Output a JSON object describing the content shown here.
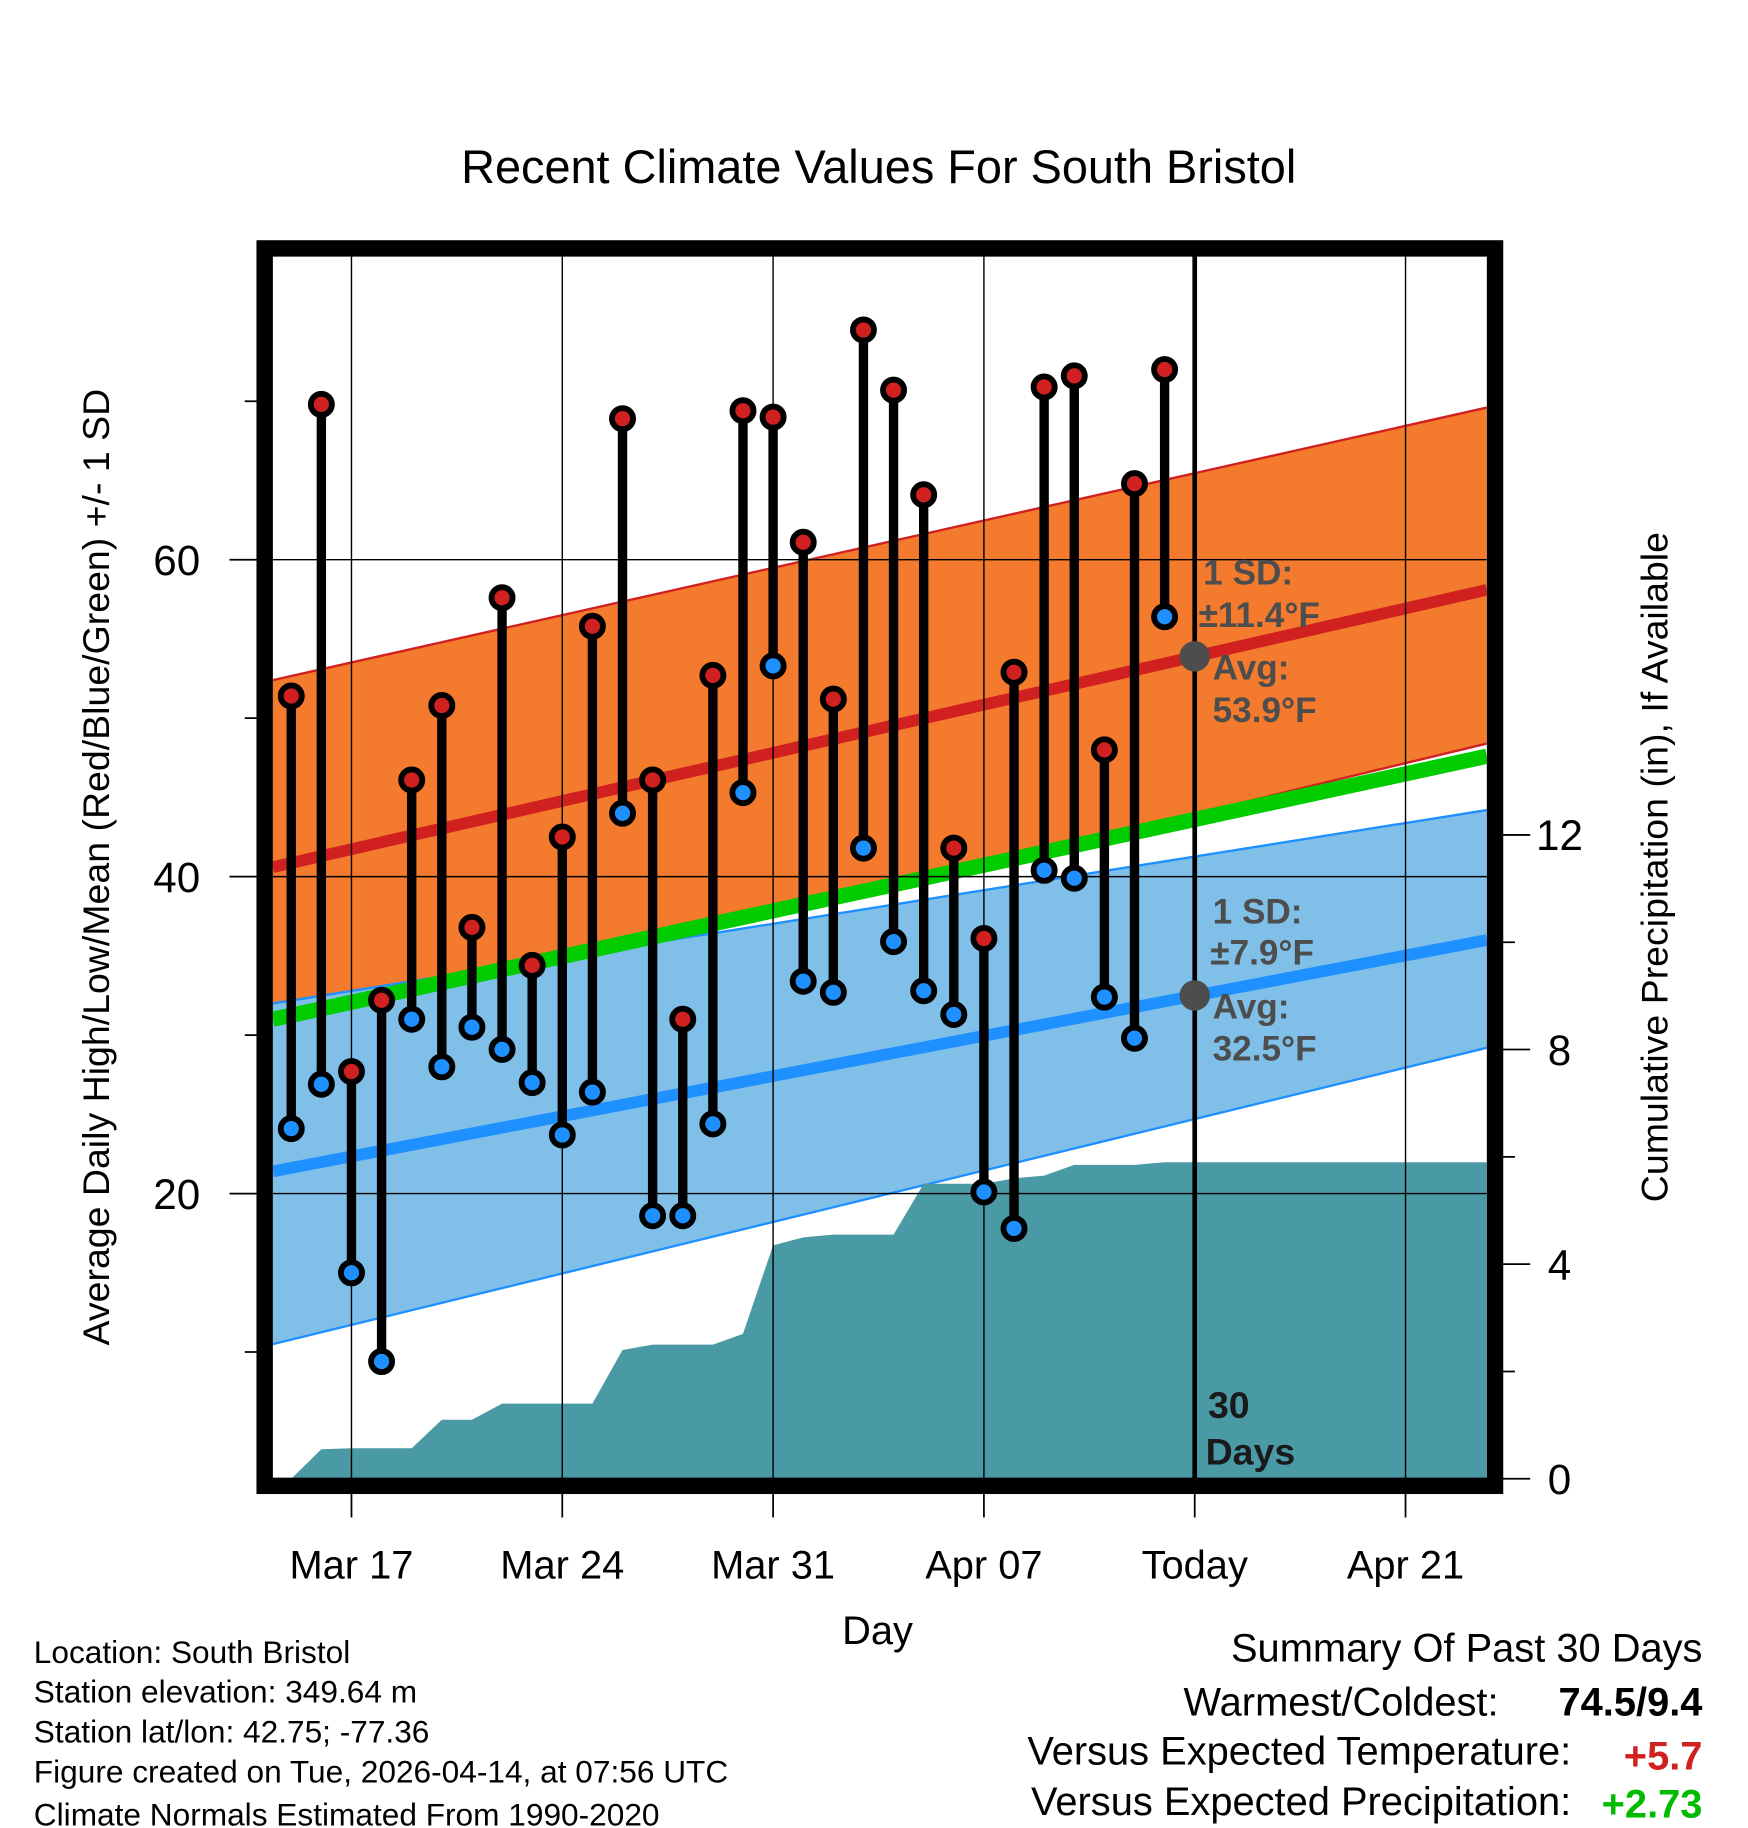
{
  "chart_data": {
    "type": "line",
    "title": "Recent Climate Values For South Bristol",
    "xlabel": "Day",
    "ylabel": "Average Daily High/Low/Mean (Red/Blue/Green) +/- 1 SD",
    "y2label": "Cumulative Precipitation (in), If Available",
    "x_origin_date": "Mar 14",
    "xlim_days": [
      0.39,
      40.7
    ],
    "ylim": [
      2,
      79.2
    ],
    "y2lim": [
      0,
      22.8
    ],
    "yticks": [
      20,
      40,
      60
    ],
    "yminor": [
      10,
      30,
      50,
      70
    ],
    "y2ticks": [
      0,
      4,
      8,
      12
    ],
    "xticks": [
      {
        "day": 3,
        "label": "Mar 17"
      },
      {
        "day": 10,
        "label": "Mar 24"
      },
      {
        "day": 17,
        "label": "Mar 31"
      },
      {
        "day": 24,
        "label": "Apr 07"
      },
      {
        "day": 31,
        "label": "Today"
      },
      {
        "day": 38,
        "label": "Apr 21"
      }
    ],
    "grid": true,
    "today_day": 31,
    "period_label": [
      "30",
      "Days"
    ],
    "days": [
      "Mar 15",
      "Mar 16",
      "Mar 17",
      "Mar 18",
      "Mar 19",
      "Mar 20",
      "Mar 21",
      "Mar 22",
      "Mar 23",
      "Mar 24",
      "Mar 25",
      "Mar 26",
      "Mar 27",
      "Mar 28",
      "Mar 29",
      "Mar 30",
      "Mar 31",
      "Apr 01",
      "Apr 02",
      "Apr 03",
      "Apr 04",
      "Apr 05",
      "Apr 06",
      "Apr 07",
      "Apr 08",
      "Apr 09",
      "Apr 10",
      "Apr 11",
      "Apr 12",
      "Apr 13"
    ],
    "series": [
      {
        "name": "Daily High",
        "color": "#d02020",
        "values": [
          51.4,
          69.8,
          27.7,
          32.2,
          46.1,
          50.8,
          36.8,
          57.6,
          34.4,
          42.5,
          55.8,
          68.9,
          46.1,
          31.0,
          52.7,
          69.4,
          69.0,
          61.1,
          51.2,
          74.5,
          70.7,
          64.1,
          41.8,
          36.1,
          52.9,
          70.9,
          71.6,
          48.0,
          64.8,
          72.0
        ]
      },
      {
        "name": "Daily Low",
        "color": "#1e90ff",
        "values": [
          24.1,
          26.9,
          15.0,
          9.4,
          31.0,
          28.0,
          30.5,
          29.1,
          27.0,
          23.7,
          26.4,
          44.0,
          18.6,
          18.6,
          24.4,
          45.3,
          53.3,
          33.4,
          32.7,
          41.8,
          35.9,
          32.8,
          31.3,
          20.1,
          17.8,
          40.4,
          39.9,
          32.4,
          29.8,
          56.4
        ]
      },
      {
        "name": "Cumulative Precipitation",
        "color": "#4a9aa5",
        "values": [
          0.0,
          0.55,
          0.57,
          0.57,
          0.57,
          1.1,
          1.1,
          1.4,
          1.4,
          1.4,
          1.4,
          2.4,
          2.5,
          2.5,
          2.5,
          2.7,
          4.35,
          4.5,
          4.55,
          4.55,
          4.55,
          5.5,
          5.5,
          5.5,
          5.6,
          5.65,
          5.85,
          5.85,
          5.85,
          5.9
        ],
        "extend_to_end": 5.9
      }
    ],
    "normals": {
      "high": {
        "upper": [
          52.4,
          69.6
        ],
        "mean": [
          40.6,
          58.1
        ],
        "lower": [
          29.9,
          48.4
        ],
        "band_color": "#f47a2d",
        "line_color": "#d02020"
      },
      "low": {
        "upper": [
          32.0,
          44.2
        ],
        "mean": [
          21.4,
          36.0
        ],
        "lower": [
          10.5,
          29.2
        ],
        "band_color": "#80c0e8",
        "line_color": "#1e90ff"
      },
      "mean": {
        "values": [
          31.0,
          47.6
        ],
        "line_color": "#00cc00"
      },
      "precip_color": "#4a9aa5"
    },
    "annotations": {
      "high": {
        "sd_label": "1 SD:",
        "sd_value": "±11.4°F",
        "avg_label": "Avg:",
        "avg_value": "53.9°F",
        "avg": 53.9
      },
      "low": {
        "sd_label": "1 SD:",
        "sd_value": "±7.9°F",
        "avg_label": "Avg:",
        "avg_value": "32.5°F",
        "avg": 32.5
      }
    }
  },
  "footer": {
    "location": "Location: South Bristol",
    "elevation": "Station elevation: 349.64 m",
    "latlon": "Station lat/lon: 42.75; -77.36",
    "created": "Figure created on Tue, 2026-04-14, at 07:56 UTC",
    "normals": "Climate Normals Estimated From 1990-2020"
  },
  "summary": {
    "title": "Summary Of Past 30 Days",
    "warm_cold_label": "Warmest/Coldest:",
    "warm_cold_value": "74.5/9.4",
    "temp_label": "Versus Expected Temperature:",
    "temp_value": "+5.7",
    "temp_color": "#d02020",
    "precip_label": "Versus Expected Precipitation:",
    "precip_value": "+2.73",
    "precip_color": "#00bb00"
  }
}
